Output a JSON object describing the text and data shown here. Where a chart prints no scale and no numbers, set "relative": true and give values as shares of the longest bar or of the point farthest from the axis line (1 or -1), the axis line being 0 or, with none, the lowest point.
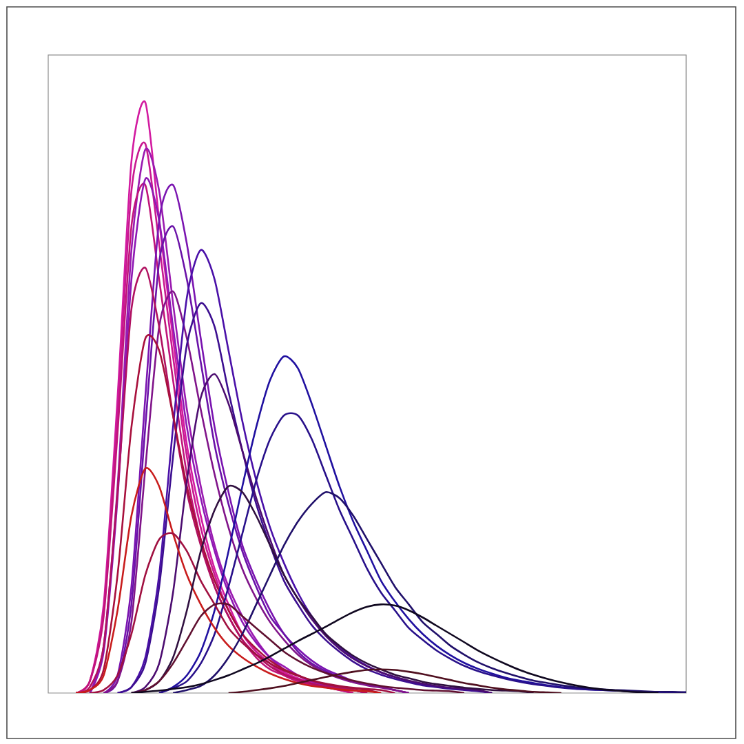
{
  "chart_data": {
    "type": "line",
    "relative": true,
    "categories": [
      null,
      null,
      null,
      null,
      null,
      null,
      null,
      null,
      null,
      null,
      null,
      null,
      null,
      null,
      null,
      null,
      null,
      null,
      null,
      null,
      null,
      null,
      null,
      null,
      null,
      null,
      null,
      null,
      null,
      null,
      null,
      null,
      null,
      null,
      null,
      null,
      null,
      null,
      null,
      null,
      null,
      null,
      null,
      null,
      null,
      null,
      null
    ],
    "series": [
      {
        "color": "#d21aa0",
        "values": [
          null,
          null,
          0,
          0.02,
          0.15,
          0.5,
          0.9,
          1,
          0.8,
          0.6,
          0.42,
          0.3,
          0.21,
          0.15,
          0.1,
          0.07,
          0.05,
          0.035,
          0.025,
          0.018,
          0.012,
          0.008,
          0.005,
          0,
          null,
          null,
          null,
          null,
          null,
          null,
          null,
          null,
          null,
          null,
          null,
          null,
          null,
          null,
          null,
          null,
          null,
          null,
          null,
          null,
          null,
          null,
          null
        ]
      },
      {
        "color": "#c81890",
        "values": [
          null,
          null,
          0,
          0.02,
          0.14,
          0.47,
          0.85,
          0.93,
          0.76,
          0.57,
          0.4,
          0.28,
          0.2,
          0.14,
          0.1,
          0.07,
          0.05,
          0.03,
          0.02,
          0.015,
          0.01,
          0.005,
          0,
          null,
          null,
          null,
          null,
          null,
          null,
          null,
          null,
          null,
          null,
          null,
          null,
          null,
          null,
          null,
          null,
          null,
          null,
          null,
          null,
          null,
          null,
          null,
          null
        ]
      },
      {
        "color": "#9a1ab0",
        "values": [
          null,
          null,
          null,
          0,
          0.08,
          0.35,
          0.75,
          0.92,
          0.85,
          0.66,
          0.48,
          0.35,
          0.25,
          0.18,
          0.13,
          0.09,
          0.06,
          0.045,
          0.03,
          0.02,
          0.014,
          0.01,
          0.005,
          0,
          null,
          null,
          null,
          null,
          null,
          null,
          null,
          null,
          null,
          null,
          null,
          null,
          null,
          null,
          null,
          null,
          null,
          null,
          null,
          null,
          null,
          null,
          null
        ]
      },
      {
        "color": "#c0147a",
        "values": [
          null,
          null,
          0,
          0.02,
          0.13,
          0.44,
          0.79,
          0.86,
          0.7,
          0.53,
          0.37,
          0.26,
          0.18,
          0.13,
          0.09,
          0.06,
          0.04,
          0.03,
          0.02,
          0.014,
          0.01,
          0.005,
          0,
          null,
          null,
          null,
          null,
          null,
          null,
          null,
          null,
          null,
          null,
          null,
          null,
          null,
          null,
          null,
          null,
          null,
          null,
          null,
          null,
          null,
          null,
          null,
          null
        ]
      },
      {
        "color": "#8e18b4",
        "values": [
          null,
          null,
          null,
          0,
          0.07,
          0.33,
          0.7,
          0.87,
          0.8,
          0.62,
          0.45,
          0.33,
          0.24,
          0.17,
          0.12,
          0.085,
          0.06,
          0.04,
          0.03,
          0.02,
          0.014,
          0.01,
          0.005,
          0,
          null,
          null,
          null,
          null,
          null,
          null,
          null,
          null,
          null,
          null,
          null,
          null,
          null,
          null,
          null,
          null,
          null,
          null,
          null,
          null,
          null,
          null,
          null
        ]
      },
      {
        "color": "#7a14b0",
        "values": [
          null,
          null,
          null,
          null,
          0,
          0.03,
          0.18,
          0.5,
          0.8,
          0.86,
          0.76,
          0.6,
          0.45,
          0.34,
          0.25,
          0.19,
          0.14,
          0.1,
          0.075,
          0.055,
          0.04,
          0.03,
          0.02,
          0.015,
          0.01,
          0.005,
          0,
          null,
          null,
          null,
          null,
          null,
          null,
          null,
          null,
          null,
          null,
          null,
          null,
          null,
          null,
          null,
          null,
          null,
          null,
          null,
          null
        ]
      },
      {
        "color": "#6a12a8",
        "values": [
          null,
          null,
          null,
          null,
          0,
          0.02,
          0.15,
          0.45,
          0.73,
          0.79,
          0.7,
          0.56,
          0.42,
          0.32,
          0.24,
          0.18,
          0.13,
          0.1,
          0.07,
          0.05,
          0.037,
          0.027,
          0.02,
          0.014,
          0.01,
          0.005,
          0,
          null,
          null,
          null,
          null,
          null,
          null,
          null,
          null,
          null,
          null,
          null,
          null,
          null,
          null,
          null,
          null,
          null,
          null,
          null,
          null
        ]
      },
      {
        "color": "#80148a",
        "values": [
          null,
          null,
          null,
          null,
          0,
          0.02,
          0.12,
          0.38,
          0.62,
          0.68,
          0.6,
          0.48,
          0.37,
          0.28,
          0.21,
          0.16,
          0.12,
          0.09,
          0.065,
          0.047,
          0.034,
          0.025,
          0.018,
          0.013,
          0.009,
          0.005,
          0,
          null,
          null,
          null,
          null,
          null,
          null,
          null,
          null,
          null,
          null,
          null,
          null,
          null,
          null,
          null,
          null,
          null,
          null,
          null,
          null
        ]
      },
      {
        "color": "#b01060",
        "values": [
          null,
          null,
          0,
          0.01,
          0.08,
          0.34,
          0.65,
          0.72,
          0.62,
          0.47,
          0.34,
          0.25,
          0.18,
          0.13,
          0.09,
          0.065,
          0.045,
          0.032,
          0.023,
          0.016,
          0.011,
          0.008,
          0.005,
          0,
          null,
          null,
          null,
          null,
          null,
          null,
          null,
          null,
          null,
          null,
          null,
          null,
          null,
          null,
          null,
          null,
          null,
          null,
          null,
          null,
          null,
          null,
          null
        ]
      },
      {
        "color": "#4a10a8",
        "values": [
          null,
          null,
          null,
          null,
          null,
          0,
          0.01,
          0.06,
          0.2,
          0.45,
          0.67,
          0.75,
          0.7,
          0.58,
          0.46,
          0.36,
          0.28,
          0.22,
          0.17,
          0.13,
          0.1,
          0.078,
          0.06,
          0.046,
          0.035,
          0.027,
          0.02,
          0.015,
          0.011,
          0.008,
          0.006,
          0.004,
          0,
          null,
          null,
          null,
          null,
          null,
          null,
          null,
          null,
          null,
          null,
          null,
          null,
          null,
          null
        ]
      },
      {
        "color": "#3c0e90",
        "values": [
          null,
          null,
          null,
          null,
          null,
          0,
          0.01,
          0.05,
          0.18,
          0.4,
          0.59,
          0.66,
          0.62,
          0.51,
          0.41,
          0.32,
          0.25,
          0.19,
          0.15,
          0.115,
          0.09,
          0.07,
          0.053,
          0.04,
          0.031,
          0.024,
          0.018,
          0.013,
          0.01,
          0.007,
          0.005,
          0.003,
          0,
          null,
          null,
          null,
          null,
          null,
          null,
          null,
          null,
          null,
          null,
          null,
          null,
          null,
          null
        ]
      },
      {
        "color": "#a8103c",
        "values": [
          null,
          null,
          0,
          0.005,
          0.04,
          0.2,
          0.45,
          0.6,
          0.58,
          0.47,
          0.35,
          0.26,
          0.19,
          0.14,
          0.1,
          0.075,
          0.055,
          0.04,
          0.03,
          0.021,
          0.015,
          0.011,
          0.008,
          0.005,
          0,
          null,
          null,
          null,
          null,
          null,
          null,
          null,
          null,
          null,
          null,
          null,
          null,
          null,
          null,
          null,
          null,
          null,
          null,
          null,
          null,
          null,
          null
        ]
      },
      {
        "color": "#4c0c70",
        "values": [
          null,
          null,
          null,
          null,
          null,
          null,
          0,
          0.01,
          0.05,
          0.17,
          0.36,
          0.5,
          0.54,
          0.49,
          0.41,
          0.33,
          0.26,
          0.2,
          0.16,
          0.125,
          0.097,
          0.075,
          0.058,
          0.045,
          0.035,
          0.027,
          0.021,
          0.016,
          0.012,
          0.009,
          0.007,
          0.005,
          0,
          null,
          null,
          null,
          null,
          null,
          null,
          null,
          null,
          null,
          null,
          null,
          null,
          null,
          null
        ]
      },
      {
        "color": "#2010a0",
        "values": [
          null,
          null,
          null,
          null,
          null,
          null,
          null,
          null,
          0,
          0.01,
          0.03,
          0.07,
          0.14,
          0.24,
          0.35,
          0.45,
          0.53,
          0.57,
          0.55,
          0.49,
          0.42,
          0.35,
          0.29,
          0.24,
          0.19,
          0.155,
          0.125,
          0.1,
          0.08,
          0.064,
          0.051,
          0.041,
          0.033,
          0.026,
          0.021,
          0.017,
          0.013,
          0.01,
          0.008,
          0.006,
          0.005,
          0.004,
          0.003,
          0.002,
          0.002,
          0.001,
          0.001
        ]
      },
      {
        "color": "#28108a",
        "values": [
          null,
          null,
          null,
          null,
          null,
          null,
          null,
          null,
          0,
          0.008,
          0.02,
          0.05,
          0.1,
          0.18,
          0.27,
          0.36,
          0.43,
          0.47,
          0.47,
          0.43,
          0.37,
          0.31,
          0.26,
          0.21,
          0.17,
          0.14,
          0.11,
          0.09,
          0.072,
          0.058,
          0.046,
          0.037,
          0.03,
          0.024,
          0.019,
          0.015,
          0.012,
          0.009,
          0.007,
          0.006,
          0.005,
          0.004,
          0.003,
          0.002,
          0.002,
          0.001,
          0.001
        ]
      },
      {
        "color": "#c81c1c",
        "values": [
          null,
          null,
          0,
          0.005,
          0.03,
          0.14,
          0.3,
          0.38,
          0.35,
          0.27,
          0.2,
          0.15,
          0.11,
          0.08,
          0.06,
          0.045,
          0.033,
          0.024,
          0.017,
          0.012,
          0.009,
          0.006,
          0.004,
          0.003,
          0,
          null,
          null,
          null,
          null,
          null,
          null,
          null,
          null,
          null,
          null,
          null,
          null,
          null,
          null,
          null,
          null,
          null,
          null,
          null,
          null,
          null,
          null
        ]
      },
      {
        "color": "#a01040",
        "values": [
          null,
          null,
          null,
          0,
          0.005,
          0.03,
          0.1,
          0.2,
          0.26,
          0.27,
          0.24,
          0.19,
          0.15,
          0.11,
          0.085,
          0.065,
          0.05,
          0.038,
          0.029,
          0.022,
          0.016,
          0.012,
          0.009,
          0.007,
          0.005,
          0,
          null,
          null,
          null,
          null,
          null,
          null,
          null,
          null,
          null,
          null,
          null,
          null,
          null,
          null,
          null,
          null,
          null,
          null,
          null,
          null,
          null
        ]
      },
      {
        "color": "#301040",
        "values": [
          null,
          null,
          null,
          null,
          null,
          null,
          0,
          0.005,
          0.02,
          0.06,
          0.14,
          0.24,
          0.31,
          0.35,
          0.34,
          0.3,
          0.25,
          0.2,
          0.16,
          0.13,
          0.1,
          0.08,
          0.063,
          0.05,
          0.04,
          0.031,
          0.025,
          0.019,
          0.015,
          0.012,
          0.009,
          0.007,
          0.005,
          0.004,
          0.003,
          0,
          null,
          null,
          null,
          null,
          null,
          null,
          null,
          null,
          null,
          null,
          null
        ]
      },
      {
        "color": "#20106a",
        "values": [
          null,
          null,
          null,
          null,
          null,
          null,
          null,
          null,
          null,
          0,
          0.005,
          0.012,
          0.03,
          0.06,
          0.1,
          0.15,
          0.2,
          0.25,
          0.29,
          0.32,
          0.34,
          0.33,
          0.3,
          0.26,
          0.22,
          0.18,
          0.15,
          0.12,
          0.1,
          0.08,
          0.065,
          0.052,
          0.042,
          0.034,
          0.027,
          0.021,
          0.017,
          0.013,
          0.01,
          0.008,
          0.006,
          0.005,
          0.004,
          0.003,
          0.002,
          0.002,
          0.001
        ]
      },
      {
        "color": "#601030",
        "values": [
          null,
          null,
          null,
          null,
          null,
          null,
          0,
          0.005,
          0.02,
          0.05,
          0.09,
          0.13,
          0.15,
          0.15,
          0.13,
          0.11,
          0.09,
          0.07,
          0.055,
          0.043,
          0.034,
          0.027,
          0.021,
          0.016,
          0.012,
          0.009,
          0.007,
          0.005,
          0.004,
          0.003,
          0,
          null,
          null,
          null,
          null,
          null,
          null,
          null,
          null,
          null,
          null,
          null,
          null,
          null,
          null,
          null,
          null
        ]
      },
      {
        "color": "#100820",
        "values": [
          null,
          null,
          null,
          null,
          null,
          null,
          0,
          0.002,
          0.004,
          0.007,
          0.01,
          0.015,
          0.022,
          0.03,
          0.04,
          0.05,
          0.062,
          0.075,
          0.088,
          0.1,
          0.112,
          0.125,
          0.137,
          0.146,
          0.15,
          0.148,
          0.14,
          0.128,
          0.114,
          0.1,
          0.086,
          0.072,
          0.06,
          0.049,
          0.039,
          0.031,
          0.024,
          0.018,
          0.013,
          0.009,
          0.006,
          0.004,
          0.002,
          0.001,
          0,
          null,
          null
        ]
      },
      {
        "color": "#501020",
        "values": [
          null,
          null,
          null,
          null,
          null,
          null,
          null,
          null,
          null,
          null,
          null,
          null,
          null,
          0,
          0.002,
          0.005,
          0.008,
          0.012,
          0.017,
          0.022,
          0.027,
          0.032,
          0.036,
          0.039,
          0.04,
          0.039,
          0.036,
          0.032,
          0.027,
          0.022,
          0.017,
          0.013,
          0.009,
          0.006,
          0.004,
          0.002,
          0.001,
          0,
          null,
          null,
          null,
          null,
          null,
          null,
          null,
          null,
          null
        ]
      }
    ]
  }
}
